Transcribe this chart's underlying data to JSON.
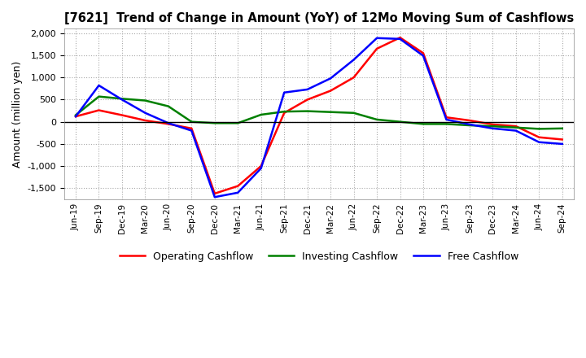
{
  "title": "[7621]  Trend of Change in Amount (YoY) of 12Mo Moving Sum of Cashflows",
  "ylabel": "Amount (million yen)",
  "ylim": [
    -1750,
    2100
  ],
  "yticks": [
    -1500,
    -1000,
    -500,
    0,
    500,
    1000,
    1500,
    2000
  ],
  "background_color": "#ffffff",
  "plot_bg_color": "#ffffff",
  "grid_color": "#aaaaaa",
  "x_labels": [
    "Jun-19",
    "Sep-19",
    "Dec-19",
    "Mar-20",
    "Jun-20",
    "Sep-20",
    "Dec-20",
    "Mar-21",
    "Jun-21",
    "Sep-21",
    "Dec-21",
    "Mar-22",
    "Jun-22",
    "Sep-22",
    "Dec-22",
    "Mar-23",
    "Jun-23",
    "Sep-23",
    "Dec-23",
    "Mar-24",
    "Jun-24",
    "Sep-24"
  ],
  "operating": [
    120,
    260,
    150,
    30,
    -50,
    -150,
    -1620,
    -1450,
    -1000,
    200,
    500,
    700,
    1000,
    1650,
    1900,
    1550,
    100,
    30,
    -60,
    -100,
    -350,
    -400
  ],
  "investing": [
    150,
    570,
    520,
    480,
    350,
    0,
    -30,
    -30,
    160,
    230,
    240,
    220,
    200,
    50,
    0,
    -50,
    -50,
    -80,
    -100,
    -130,
    -160,
    -150
  ],
  "free": [
    120,
    820,
    500,
    200,
    -30,
    -200,
    -1700,
    -1600,
    -1050,
    660,
    730,
    980,
    1400,
    1890,
    1870,
    1490,
    50,
    -60,
    -150,
    -200,
    -460,
    -500
  ],
  "op_color": "#ff0000",
  "inv_color": "#008000",
  "free_color": "#0000ff",
  "legend_labels": [
    "Operating Cashflow",
    "Investing Cashflow",
    "Free Cashflow"
  ],
  "title_fontsize": 10.5,
  "ylabel_fontsize": 9,
  "tick_fontsize": 8,
  "xtick_fontsize": 7.5,
  "legend_fontsize": 9,
  "linewidth": 1.8
}
